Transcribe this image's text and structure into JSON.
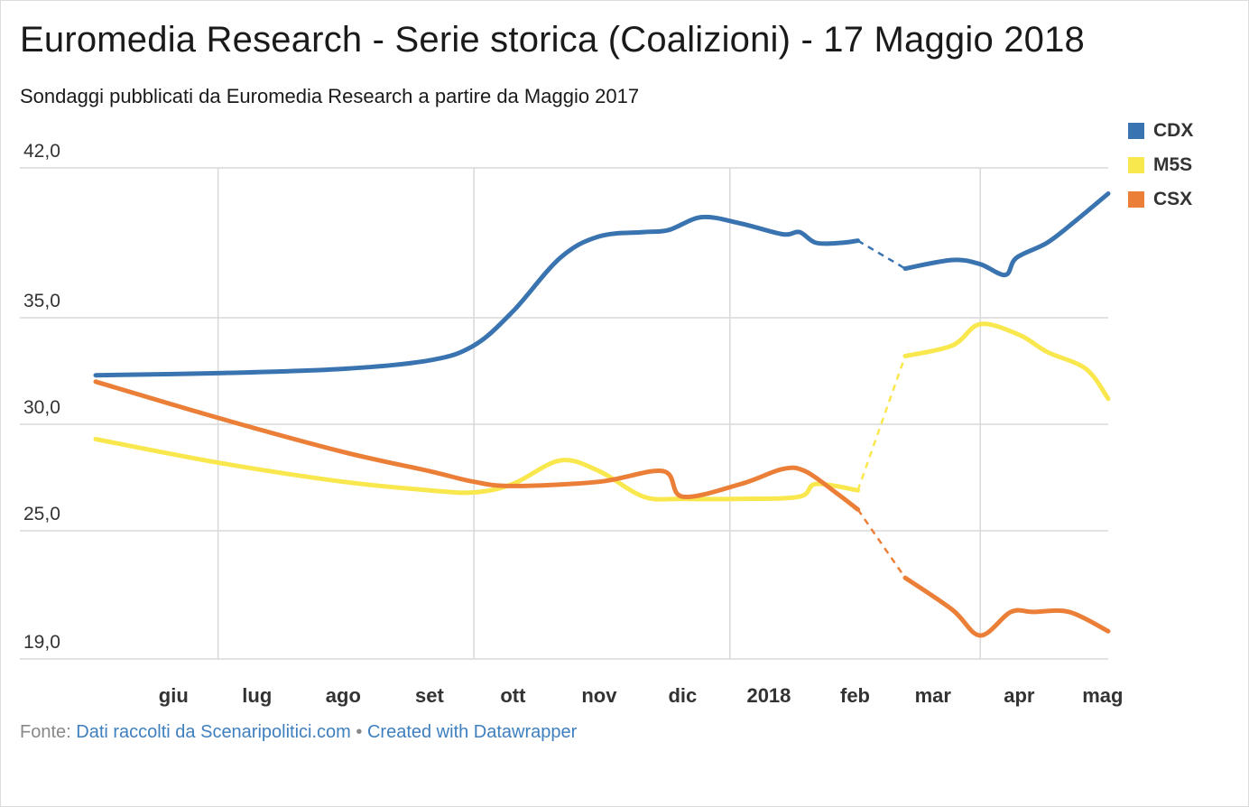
{
  "title": "Euromedia Research - Serie storica (Coalizioni) - 17 Maggio 2018",
  "subtitle": "Sondaggi pubblicati da Euromedia Research a partire da Maggio 2017",
  "footer": {
    "prefix": "Fonte:",
    "source_link": "Dati raccolti da Scenaripolitici.com",
    "separator": "•",
    "credit_link": "Created with Datawrapper"
  },
  "colors": {
    "CDX": "#3a74b0",
    "M5S": "#f9e74e",
    "CSX": "#eb7f38",
    "grid": "#d9d9d9"
  },
  "chart_data": {
    "type": "line",
    "title": "Euromedia Research - Serie storica (Coalizioni) - 17 Maggio 2018",
    "xlabel": "",
    "ylabel": "",
    "ylim": [
      19.0,
      42.0
    ],
    "y_ticks": [
      "42,0",
      "35,0",
      "30,0",
      "25,0",
      "19,0"
    ],
    "y_tick_values": [
      42.0,
      35.0,
      30.0,
      25.0,
      19.0
    ],
    "x_range": [
      "2017-05-18",
      "2018-05-17"
    ],
    "x_ticks": [
      {
        "label": "giu",
        "date": "2017-06-15"
      },
      {
        "label": "lug",
        "date": "2017-07-15"
      },
      {
        "label": "ago",
        "date": "2017-08-15"
      },
      {
        "label": "set",
        "date": "2017-09-15"
      },
      {
        "label": "ott",
        "date": "2017-10-15"
      },
      {
        "label": "nov",
        "date": "2017-11-15"
      },
      {
        "label": "dic",
        "date": "2017-12-15"
      },
      {
        "label": "2018",
        "date": "2018-01-15"
      },
      {
        "label": "feb",
        "date": "2018-02-15"
      },
      {
        "label": "mar",
        "date": "2018-03-15"
      },
      {
        "label": "apr",
        "date": "2018-04-15"
      },
      {
        "label": "mag",
        "date": "2018-05-15"
      }
    ],
    "x_gridlines": [
      "2017-07-01",
      "2017-10-01",
      "2018-01-01",
      "2018-04-01"
    ],
    "gap": [
      "2018-02-16",
      "2018-03-05"
    ],
    "legend_position": "top-right",
    "series": [
      {
        "name": "CDX",
        "points": [
          [
            "2017-05-18",
            32.3
          ],
          [
            "2017-07-01",
            32.4
          ],
          [
            "2017-08-15",
            32.6
          ],
          [
            "2017-09-15",
            33.0
          ],
          [
            "2017-10-01",
            33.7
          ],
          [
            "2017-10-15",
            35.3
          ],
          [
            "2017-11-01",
            37.8
          ],
          [
            "2017-11-15",
            38.8
          ],
          [
            "2017-12-01",
            39.0
          ],
          [
            "2017-12-10",
            39.1
          ],
          [
            "2017-12-22",
            39.7
          ],
          [
            "2018-01-05",
            39.4
          ],
          [
            "2018-01-20",
            38.9
          ],
          [
            "2018-01-26",
            39.0
          ],
          [
            "2018-02-01",
            38.5
          ],
          [
            "2018-02-10",
            38.5
          ],
          [
            "2018-02-16",
            38.6
          ],
          [
            "2018-03-05",
            37.3
          ],
          [
            "2018-03-22",
            37.7
          ],
          [
            "2018-04-01",
            37.5
          ],
          [
            "2018-04-10",
            37.0
          ],
          [
            "2018-04-14",
            37.8
          ],
          [
            "2018-04-25",
            38.5
          ],
          [
            "2018-05-05",
            39.5
          ],
          [
            "2018-05-17",
            40.8
          ]
        ]
      },
      {
        "name": "M5S",
        "points": [
          [
            "2017-05-18",
            29.3
          ],
          [
            "2017-07-01",
            28.2
          ],
          [
            "2017-08-15",
            27.3
          ],
          [
            "2017-09-15",
            26.9
          ],
          [
            "2017-10-01",
            26.8
          ],
          [
            "2017-10-15",
            27.2
          ],
          [
            "2017-11-01",
            28.3
          ],
          [
            "2017-11-15",
            27.8
          ],
          [
            "2017-12-01",
            26.6
          ],
          [
            "2017-12-15",
            26.5
          ],
          [
            "2018-01-05",
            26.5
          ],
          [
            "2018-01-26",
            26.6
          ],
          [
            "2018-02-01",
            27.2
          ],
          [
            "2018-02-16",
            26.9
          ],
          [
            "2018-03-05",
            33.2
          ],
          [
            "2018-03-22",
            33.7
          ],
          [
            "2018-04-01",
            34.7
          ],
          [
            "2018-04-15",
            34.2
          ],
          [
            "2018-04-25",
            33.4
          ],
          [
            "2018-05-09",
            32.6
          ],
          [
            "2018-05-17",
            31.2
          ]
        ]
      },
      {
        "name": "CSX",
        "points": [
          [
            "2017-05-18",
            32.0
          ],
          [
            "2017-07-01",
            30.3
          ],
          [
            "2017-08-15",
            28.7
          ],
          [
            "2017-09-15",
            27.8
          ],
          [
            "2017-10-01",
            27.3
          ],
          [
            "2017-10-15",
            27.1
          ],
          [
            "2017-11-15",
            27.3
          ],
          [
            "2017-12-08",
            27.8
          ],
          [
            "2017-12-15",
            26.6
          ],
          [
            "2018-01-05",
            27.2
          ],
          [
            "2018-01-20",
            27.9
          ],
          [
            "2018-01-28",
            27.8
          ],
          [
            "2018-02-08",
            26.8
          ],
          [
            "2018-02-16",
            26.0
          ],
          [
            "2018-03-05",
            22.8
          ],
          [
            "2018-03-22",
            21.3
          ],
          [
            "2018-04-01",
            20.1
          ],
          [
            "2018-04-12",
            21.2
          ],
          [
            "2018-04-20",
            21.2
          ],
          [
            "2018-05-03",
            21.2
          ],
          [
            "2018-05-17",
            20.3
          ]
        ]
      }
    ]
  }
}
